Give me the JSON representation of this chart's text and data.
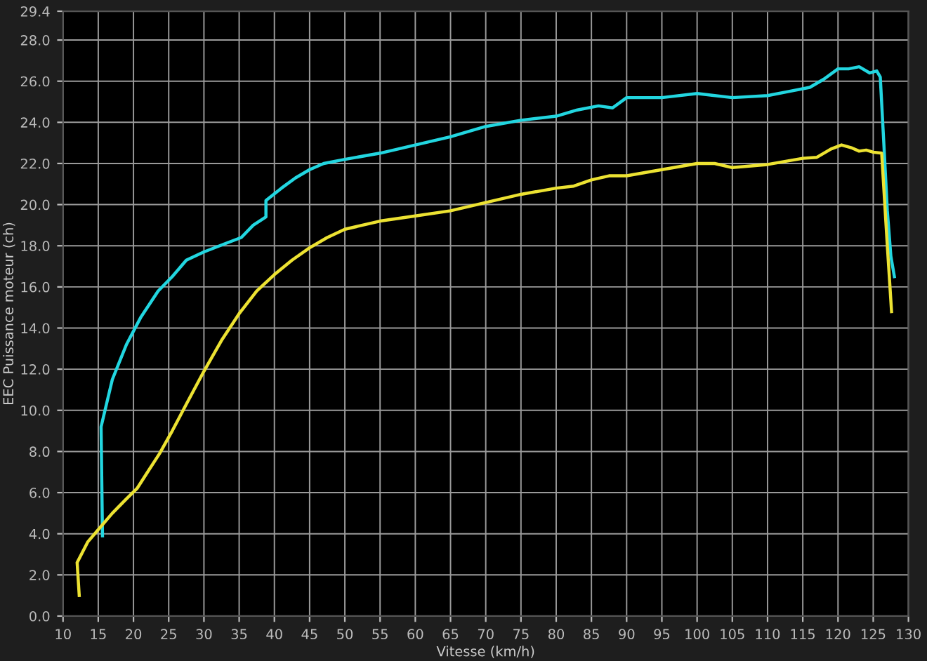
{
  "chart_data": {
    "type": "line",
    "xlabel": "Vitesse (km/h)",
    "ylabel": "EEC Puissance moteur (ch)",
    "xlim": [
      10,
      130
    ],
    "ylim": [
      0,
      29.4
    ],
    "xticks": [
      10,
      15,
      20,
      25,
      30,
      35,
      40,
      45,
      50,
      55,
      60,
      65,
      70,
      75,
      80,
      85,
      90,
      95,
      100,
      105,
      110,
      115,
      120,
      125,
      130
    ],
    "yticks": [
      {
        "value": 0,
        "label": "0.0"
      },
      {
        "value": 2,
        "label": "2.0"
      },
      {
        "value": 4,
        "label": "4.0"
      },
      {
        "value": 6,
        "label": "6.0"
      },
      {
        "value": 8,
        "label": "8.0"
      },
      {
        "value": 10,
        "label": "10.0"
      },
      {
        "value": 12,
        "label": "12.0"
      },
      {
        "value": 14,
        "label": "14.0"
      },
      {
        "value": 16,
        "label": "16.0"
      },
      {
        "value": 18,
        "label": "18.0"
      },
      {
        "value": 20,
        "label": "20.0"
      },
      {
        "value": 22,
        "label": "22.0"
      },
      {
        "value": 24,
        "label": "24.0"
      },
      {
        "value": 26,
        "label": "26.0"
      },
      {
        "value": 28,
        "label": "28.0"
      },
      {
        "value": 29.4,
        "label": "29.4"
      }
    ],
    "grid": true,
    "marker": "none",
    "line_style": "solid",
    "series": [
      {
        "color": "#22d6e0",
        "x": [
          15.6,
          15.5,
          15.4,
          17,
          19,
          21,
          23.5,
          25.5,
          27.5,
          30,
          33,
          35.3,
          37,
          38.8,
          38.8,
          41,
          43,
          45,
          47,
          50,
          55,
          60,
          65,
          70,
          75,
          80,
          83,
          86,
          88,
          90,
          95,
          100,
          105,
          110,
          113,
          116,
          118,
          120,
          121.5,
          123,
          124.5,
          125.5,
          126,
          126.5,
          127,
          127.5,
          128
        ],
        "values": [
          3.9,
          6.5,
          9.2,
          11.5,
          13.2,
          14.5,
          15.8,
          16.5,
          17.3,
          17.7,
          18.1,
          18.4,
          19.0,
          19.4,
          20.2,
          20.8,
          21.3,
          21.7,
          22.0,
          22.2,
          22.5,
          22.9,
          23.3,
          23.8,
          24.1,
          24.3,
          24.6,
          24.8,
          24.7,
          25.2,
          25.2,
          25.4,
          25.2,
          25.3,
          25.5,
          25.7,
          26.1,
          26.6,
          26.6,
          26.7,
          26.4,
          26.5,
          26.2,
          23.0,
          19.7,
          17.5,
          16.5
        ]
      },
      {
        "color": "#ece232",
        "x": [
          12.3,
          12.0,
          13.5,
          15,
          17,
          19,
          20.5,
          22,
          23.7,
          25.5,
          27.5,
          30,
          32.5,
          35,
          37.5,
          40,
          42.5,
          45,
          47.5,
          50,
          55,
          60,
          65,
          70,
          75,
          80,
          82.5,
          85,
          87.5,
          90,
          95,
          100,
          102.5,
          105,
          110,
          115,
          117,
          119,
          120.5,
          122,
          123,
          124,
          125,
          126.2,
          127,
          127.6
        ],
        "values": [
          1.0,
          2.6,
          3.6,
          4.2,
          5.0,
          5.7,
          6.2,
          7.0,
          7.9,
          9.0,
          10.3,
          11.9,
          13.4,
          14.7,
          15.8,
          16.6,
          17.3,
          17.9,
          18.4,
          18.8,
          19.2,
          19.45,
          19.7,
          20.1,
          20.5,
          20.8,
          20.9,
          21.2,
          21.4,
          21.4,
          21.7,
          22.0,
          22.0,
          21.8,
          21.95,
          22.25,
          22.3,
          22.7,
          22.9,
          22.75,
          22.6,
          22.65,
          22.55,
          22.5,
          18.0,
          14.8
        ]
      }
    ]
  }
}
